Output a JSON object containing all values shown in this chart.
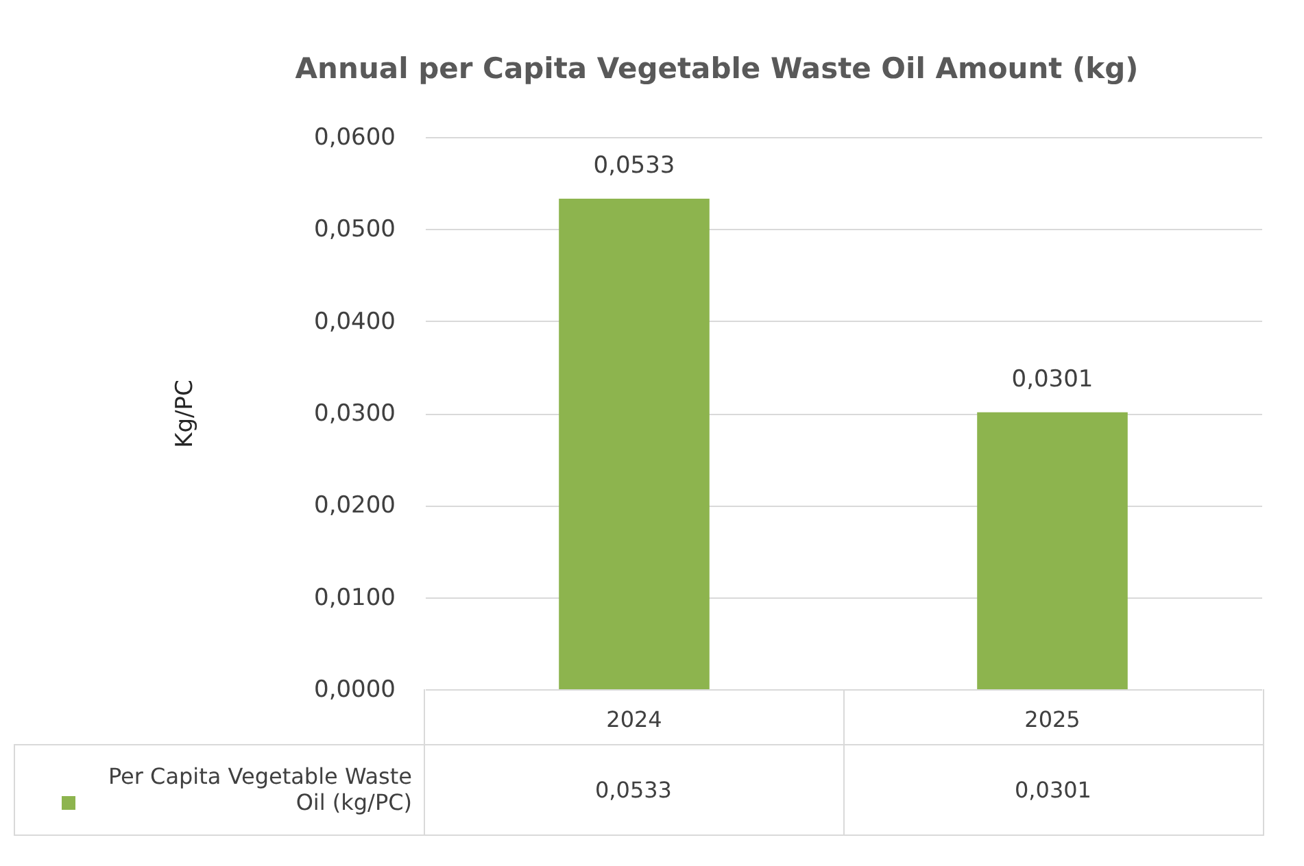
{
  "chart_data": {
    "type": "bar",
    "title": "Annual per Capita Vegetable Waste Oil Amount (kg)",
    "ylabel": "Kg/PC",
    "categories": [
      "2024",
      "2025"
    ],
    "series": [
      {
        "name": "Per Capita Vegetable Waste Oil (kg/PC)",
        "color": "#8db44e",
        "values": [
          0.0533,
          0.0301
        ],
        "value_labels": [
          "0,0533",
          "0,0301"
        ]
      }
    ],
    "ylim": [
      0,
      0.06
    ],
    "yticks": [
      {
        "value": 0,
        "label": "0,0000"
      },
      {
        "value": 0.01,
        "label": "0,0100"
      },
      {
        "value": 0.02,
        "label": "0,0200"
      },
      {
        "value": 0.03,
        "label": "0,0300"
      },
      {
        "value": 0.04,
        "label": "0,0400"
      },
      {
        "value": 0.05,
        "label": "0,0500"
      },
      {
        "value": 0.06,
        "label": "0,0600"
      }
    ],
    "grid": "y",
    "legend": "bottom"
  }
}
